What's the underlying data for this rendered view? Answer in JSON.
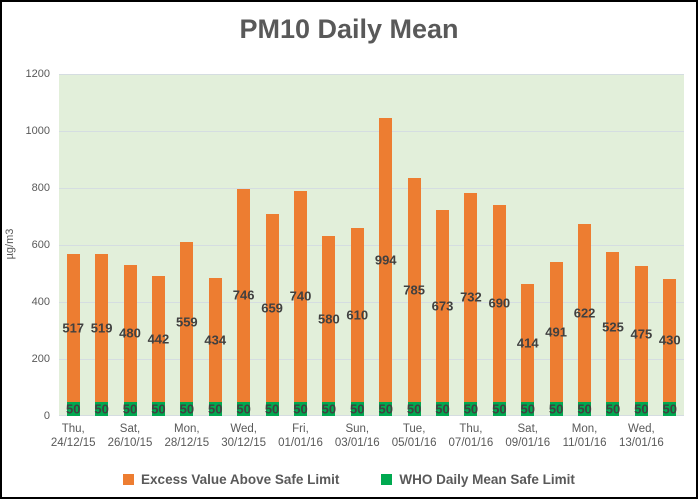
{
  "colors": {
    "excess_orange": "#ED7D31",
    "safe_green": "#00A950",
    "plot_background": "#E2EFDA",
    "gridline": "#D5DDE1",
    "title_text": "#595959",
    "axis_text": "#595959",
    "data_label_text": "#404040",
    "outer_border": "#000000"
  },
  "chart_data": {
    "type": "bar",
    "stacked": true,
    "title": "PM10 Daily Mean",
    "ylabel": "µg/m3",
    "xlabel": "",
    "ylim": [
      0,
      1200
    ],
    "y_ticks": [
      0,
      200,
      400,
      600,
      800,
      1000,
      1200
    ],
    "grid": true,
    "legend_position": "bottom",
    "data_labels": true,
    "categories_count": 22,
    "x_tick_labels": [
      {
        "day": "Thu,",
        "date": "24/12/15"
      },
      null,
      {
        "day": "Sat,",
        "date": "26/10/15"
      },
      null,
      {
        "day": "Mon,",
        "date": "28/12/15"
      },
      null,
      {
        "day": "Wed,",
        "date": "30/12/15"
      },
      null,
      {
        "day": "Fri,",
        "date": "01/01/16"
      },
      null,
      {
        "day": "Sun,",
        "date": "03/01/16"
      },
      null,
      {
        "day": "Tue,",
        "date": "05/01/16"
      },
      null,
      {
        "day": "Thu,",
        "date": "07/01/16"
      },
      null,
      {
        "day": "Sat,",
        "date": "09/01/16"
      },
      null,
      {
        "day": "Mon,",
        "date": "11/01/16"
      },
      null,
      {
        "day": "Wed,",
        "date": "13/01/16"
      },
      null
    ],
    "series": [
      {
        "name": "WHO Daily Mean Safe Limit",
        "color": "#00A950",
        "values": [
          50,
          50,
          50,
          50,
          50,
          50,
          50,
          50,
          50,
          50,
          50,
          50,
          50,
          50,
          50,
          50,
          50,
          50,
          50,
          50,
          50,
          50
        ]
      },
      {
        "name": "Excess Value Above Safe Limit",
        "color": "#ED7D31",
        "values": [
          517,
          519,
          480,
          442,
          559,
          434,
          746,
          659,
          740,
          580,
          610,
          994,
          785,
          673,
          732,
          690,
          414,
          491,
          622,
          525,
          475,
          430
        ]
      }
    ]
  }
}
